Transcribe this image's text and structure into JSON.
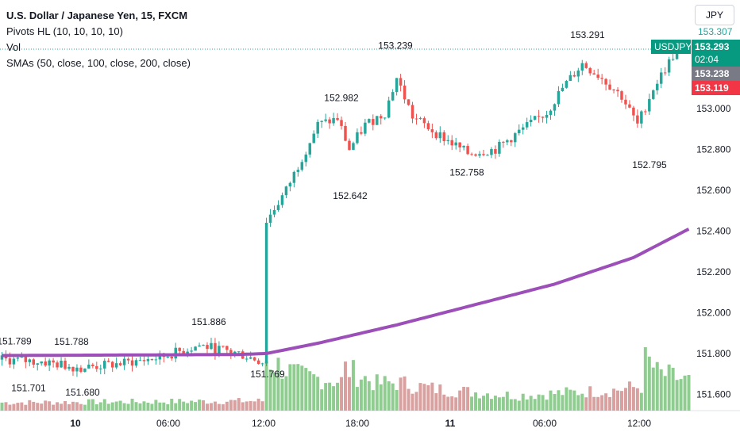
{
  "legend": {
    "title": "U.S. Dollar / Japanese Yen, 15, FXCM",
    "pivots": "Pivots HL (10, 10, 10, 10)",
    "vol": "Vol",
    "smas": "SMAs (50, close, 100, close, 200, close)"
  },
  "currency_button": "JPY",
  "price_tags": {
    "symbol": "USDJPY",
    "last": "153.293",
    "countdown": "02:04",
    "gray": "153.238",
    "red": "153.119",
    "top_partial": "153.307"
  },
  "colors": {
    "up": "#26a69a",
    "down": "#ef5350",
    "sma": "#9c4fb8",
    "vol_up": "#8fcc8f",
    "vol_down": "#d9a0a0",
    "tag_symbol": "#089981",
    "tag_gray": "#787b86",
    "tag_red": "#f23645"
  },
  "chart_data": {
    "type": "candlestick",
    "title": "U.S. Dollar / Japanese Yen, 15, FXCM",
    "y_ticks": [
      "153.000",
      "152.800",
      "152.600",
      "152.400",
      "152.200",
      "152.000",
      "151.800",
      "151.600"
    ],
    "x_ticks": [
      "10",
      "06:00",
      "12:00",
      "18:00",
      "11",
      "06:00",
      "12:00"
    ],
    "ylim": [
      151.52,
      153.4
    ],
    "pivot_labels": [
      {
        "label": "151.789",
        "value": 151.789,
        "kind": "high"
      },
      {
        "label": "151.788",
        "value": 151.788,
        "kind": "high"
      },
      {
        "label": "151.886",
        "value": 151.886,
        "kind": "high"
      },
      {
        "label": "153.239",
        "value": 153.239,
        "kind": "high"
      },
      {
        "label": "152.982",
        "value": 152.982,
        "kind": "high"
      },
      {
        "label": "153.291",
        "value": 153.291,
        "kind": "high"
      },
      {
        "label": "151.701",
        "value": 151.701,
        "kind": "low"
      },
      {
        "label": "151.680",
        "value": 151.68,
        "kind": "low"
      },
      {
        "label": "151.769",
        "value": 151.769,
        "kind": "low"
      },
      {
        "label": "152.642",
        "value": 152.642,
        "kind": "low"
      },
      {
        "label": "152.758",
        "value": 152.758,
        "kind": "low"
      },
      {
        "label": "152.795",
        "value": 152.795,
        "kind": "low"
      }
    ],
    "close_path": [
      {
        "bar": 0,
        "close": 151.77
      },
      {
        "bar": 10,
        "close": 151.76
      },
      {
        "bar": 20,
        "close": 151.73
      },
      {
        "bar": 30,
        "close": 151.75
      },
      {
        "bar": 40,
        "close": 151.78
      },
      {
        "bar": 50,
        "close": 151.84
      },
      {
        "bar": 60,
        "close": 151.8
      },
      {
        "bar": 66,
        "close": 151.76
      },
      {
        "bar": 67,
        "close": 152.45
      },
      {
        "bar": 72,
        "close": 152.6
      },
      {
        "bar": 80,
        "close": 152.92
      },
      {
        "bar": 85,
        "close": 152.95
      },
      {
        "bar": 88,
        "close": 152.8
      },
      {
        "bar": 92,
        "close": 152.92
      },
      {
        "bar": 97,
        "close": 152.98
      },
      {
        "bar": 100,
        "close": 153.15
      },
      {
        "bar": 104,
        "close": 152.96
      },
      {
        "bar": 110,
        "close": 152.88
      },
      {
        "bar": 118,
        "close": 152.78
      },
      {
        "bar": 125,
        "close": 152.8
      },
      {
        "bar": 132,
        "close": 152.9
      },
      {
        "bar": 138,
        "close": 152.98
      },
      {
        "bar": 142,
        "close": 153.1
      },
      {
        "bar": 147,
        "close": 153.22
      },
      {
        "bar": 152,
        "close": 153.15
      },
      {
        "bar": 157,
        "close": 153.06
      },
      {
        "bar": 161,
        "close": 152.92
      },
      {
        "bar": 165,
        "close": 153.1
      },
      {
        "bar": 171,
        "close": 153.29
      }
    ],
    "sma": [
      {
        "bar": 0,
        "value": 151.79
      },
      {
        "bar": 60,
        "value": 151.795
      },
      {
        "bar": 67,
        "value": 151.8
      },
      {
        "bar": 80,
        "value": 151.85
      },
      {
        "bar": 100,
        "value": 151.94
      },
      {
        "bar": 120,
        "value": 152.04
      },
      {
        "bar": 140,
        "value": 152.14
      },
      {
        "bar": 160,
        "value": 152.27
      },
      {
        "bar": 174,
        "value": 152.41
      }
    ],
    "volume_levels": [
      {
        "bar": 0,
        "level": 0.15
      },
      {
        "bar": 66,
        "level": 0.18
      },
      {
        "bar": 67,
        "level": 0.95
      },
      {
        "bar": 75,
        "level": 0.65
      },
      {
        "bar": 86,
        "level": 0.55
      },
      {
        "bar": 87,
        "level": 0.78
      },
      {
        "bar": 95,
        "level": 0.5
      },
      {
        "bar": 100,
        "level": 0.52
      },
      {
        "bar": 110,
        "level": 0.4
      },
      {
        "bar": 130,
        "level": 0.28
      },
      {
        "bar": 155,
        "level": 0.38
      },
      {
        "bar": 162,
        "level": 0.45
      },
      {
        "bar": 163,
        "level": 1.0
      },
      {
        "bar": 166,
        "level": 0.7
      },
      {
        "bar": 174,
        "level": 0.55
      }
    ]
  }
}
